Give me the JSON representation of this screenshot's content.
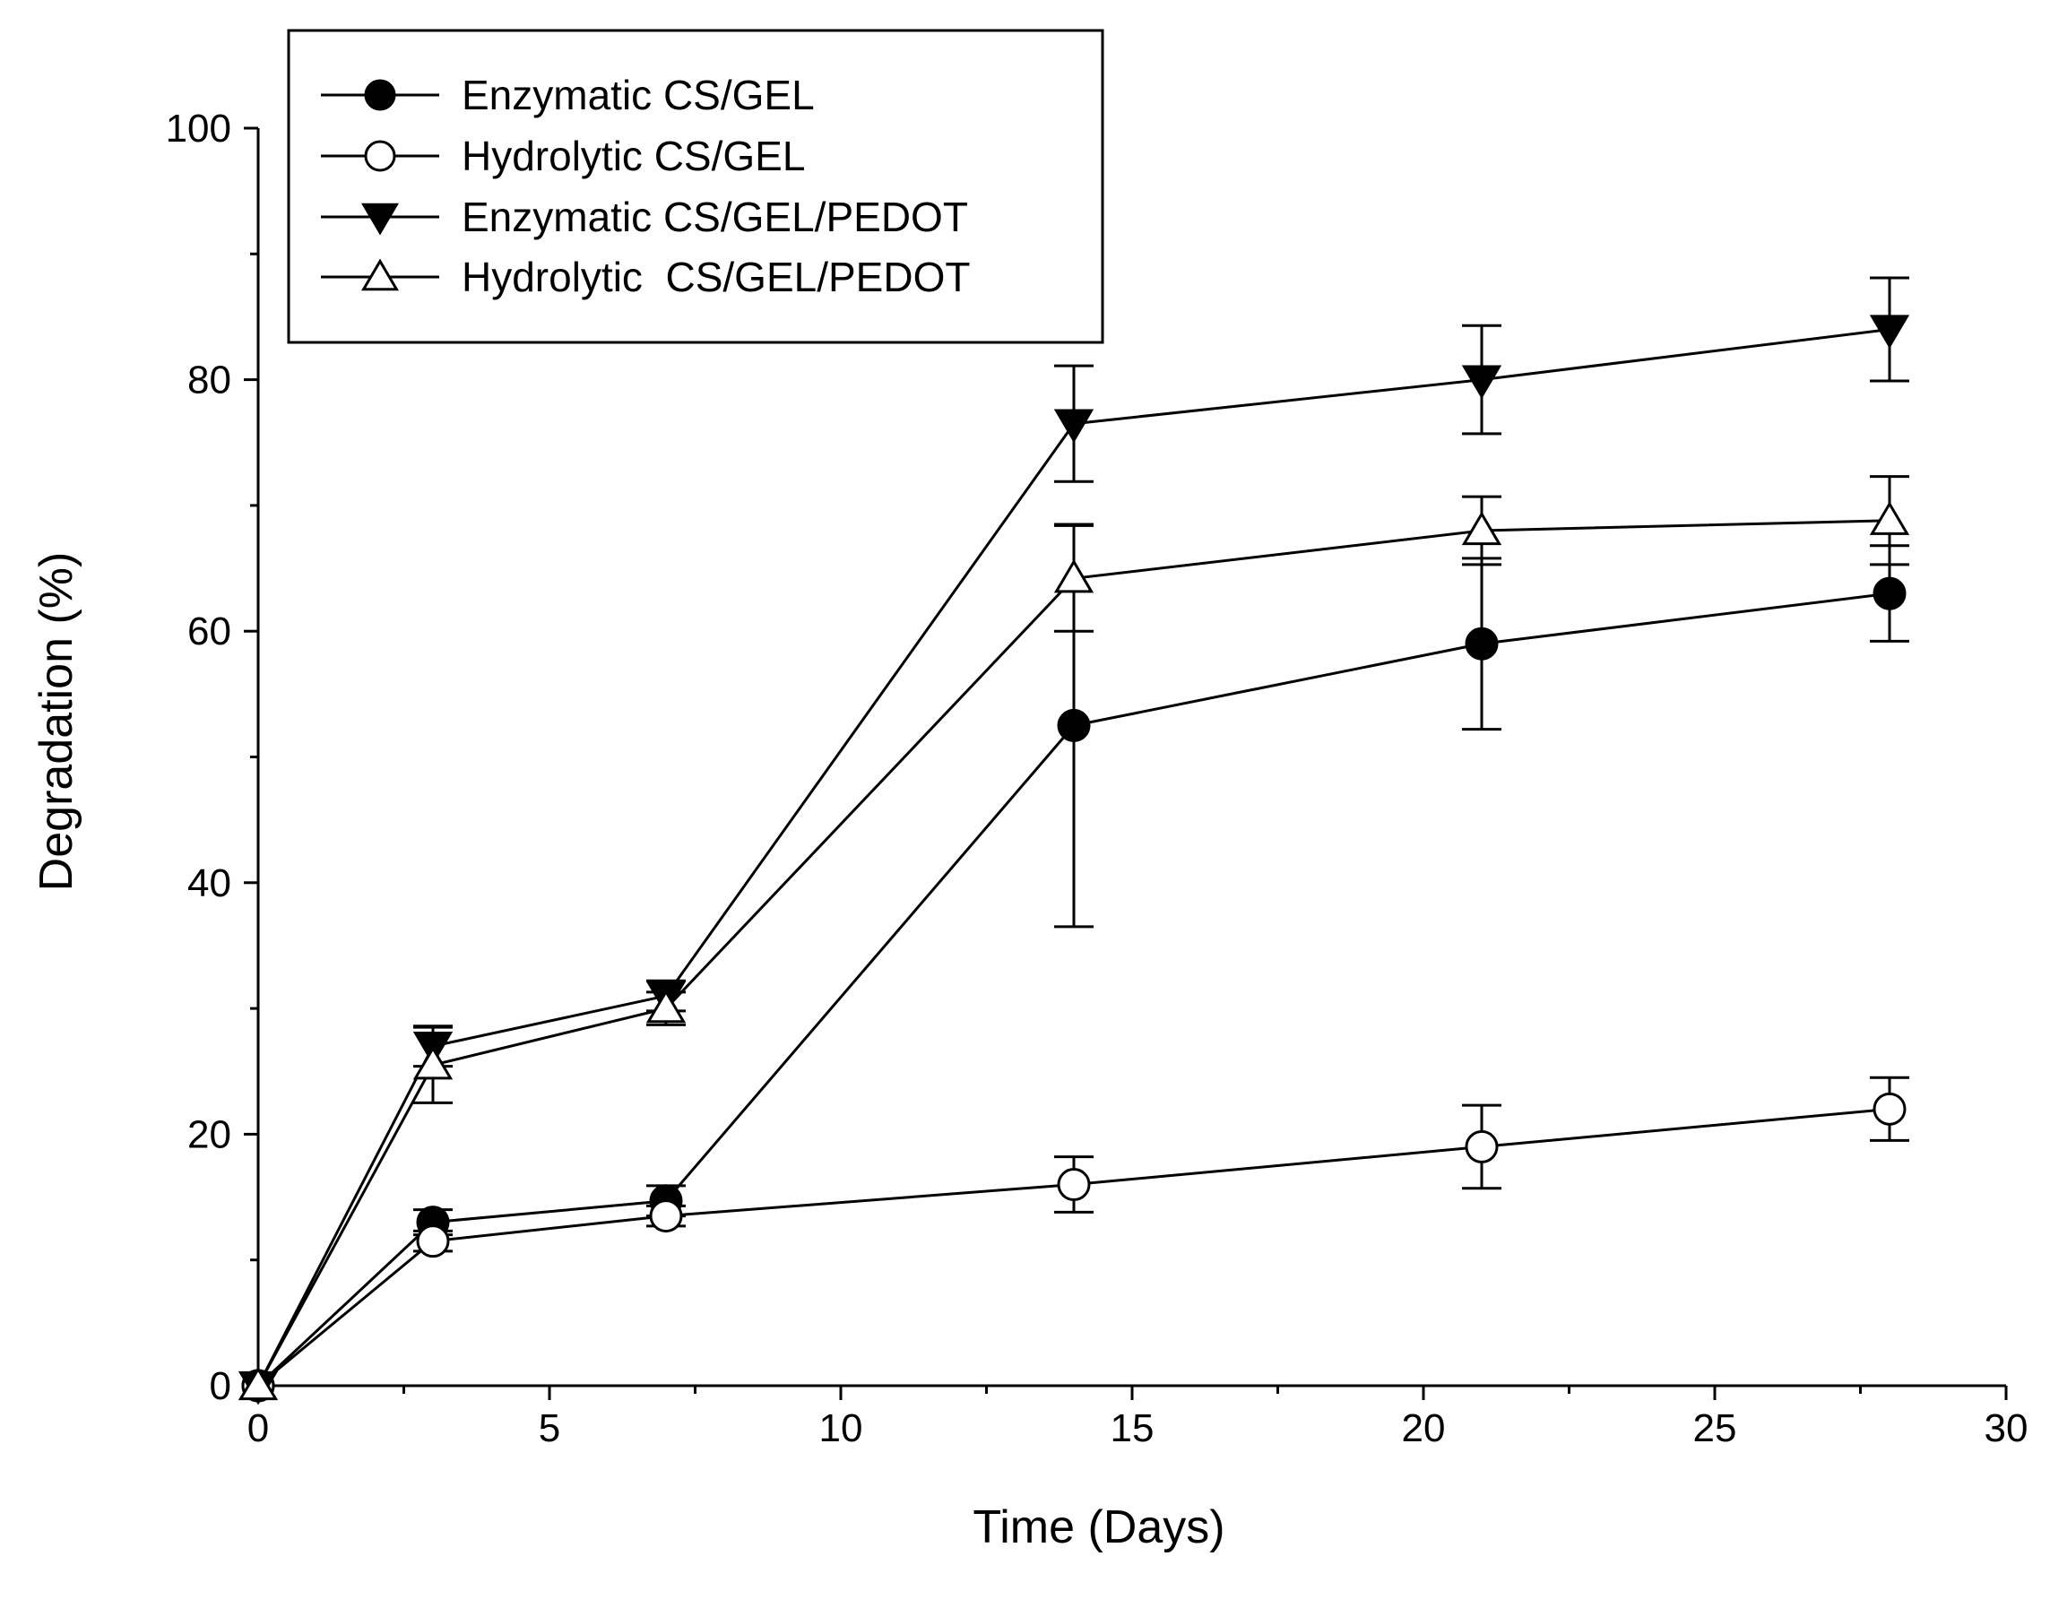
{
  "chart_data": {
    "type": "line",
    "title": "",
    "xlabel": "Time (Days)",
    "ylabel": "Degradation (%)",
    "xlim": [
      0,
      30
    ],
    "ylim": [
      0,
      100
    ],
    "xticks": [
      "0",
      "5",
      "10",
      "15",
      "20",
      "25",
      "30"
    ],
    "yticks": [
      "0",
      "20",
      "40",
      "60",
      "80",
      "100"
    ],
    "grid": false,
    "legend_position": "top-left",
    "x": [
      0,
      3,
      7,
      14,
      21,
      28
    ],
    "series": [
      {
        "name": "Enzymatic CS/GEL",
        "marker": "filled-circle",
        "values": [
          0,
          13,
          14.7,
          52.5,
          59,
          63
        ],
        "errors": [
          0,
          1,
          1.2,
          16,
          6.8,
          3.8
        ]
      },
      {
        "name": "Hydrolytic CS/GEL",
        "marker": "open-circle",
        "values": [
          0,
          11.5,
          13.5,
          16,
          19,
          22
        ],
        "errors": [
          0,
          0.8,
          0.8,
          2.2,
          3.3,
          2.5
        ]
      },
      {
        "name": "Enzymatic CS/GEL/PEDOT",
        "marker": "filled-triangle-down",
        "values": [
          0,
          27,
          31,
          76.5,
          80,
          84
        ],
        "errors": [
          0,
          1.6,
          1.2,
          4.6,
          4.3,
          4.1
        ]
      },
      {
        "name": "Hydrolytic  CS/GEL/PEDOT",
        "marker": "open-triangle-up",
        "values": [
          0,
          25.5,
          30,
          64.2,
          68,
          68.8
        ],
        "errors": [
          0,
          3,
          1.3,
          4.2,
          2.7,
          3.5
        ]
      }
    ]
  }
}
